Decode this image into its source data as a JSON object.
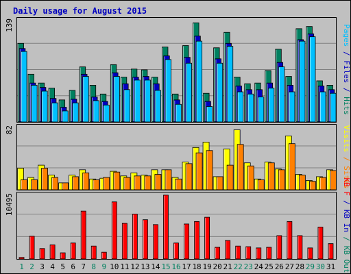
{
  "chart_data": {
    "type": "bar",
    "title": "Daily usage for August 2015",
    "categories": [
      "1",
      "2",
      "3",
      "4",
      "5",
      "6",
      "7",
      "8",
      "9",
      "10",
      "11",
      "12",
      "13",
      "14",
      "15",
      "16",
      "17",
      "18",
      "19",
      "20",
      "21",
      "22",
      "23",
      "24",
      "25",
      "26",
      "27",
      "28",
      "29",
      "30",
      "31"
    ],
    "weekend_days": [
      "1",
      "2",
      "8",
      "9",
      "15",
      "16",
      "22",
      "23",
      "29",
      "30"
    ],
    "panels": [
      {
        "id": "top",
        "ymax_label": "139",
        "ylim": [
          0,
          139
        ],
        "axis_label_parts": [
          {
            "text": "Pages",
            "color": "#00c0ff"
          },
          {
            "text": " / ",
            "color": "#0000c0"
          },
          {
            "text": "Files",
            "color": "#0000c0"
          },
          {
            "text": " / ",
            "color": "#0000c0"
          },
          {
            "text": "Hits",
            "color": "#008060"
          }
        ],
        "series": [
          {
            "name": "Hits",
            "color": "#008060",
            "values": [
              107,
              65,
              53,
              46,
              30,
              43,
              75,
              50,
              38,
              78,
              61,
              72,
              71,
              61,
              102,
              38,
              104,
              135,
              39,
              101,
              122,
              61,
              52,
              53,
              70,
              99,
              62,
              127,
              130,
              56,
              50
            ]
          },
          {
            "name": "Files",
            "color": "#0000c0",
            "values": [
              100,
              53,
              47,
              32,
              20,
              31,
              65,
              34,
              28,
              67,
              52,
              61,
              62,
              52,
              90,
              30,
              88,
              117,
              28,
              86,
              107,
              49,
              44,
              44,
              53,
              81,
              50,
              112,
              120,
              49,
              44
            ]
          },
          {
            "name": "Pages",
            "color": "#00c0ff",
            "values": [
              96,
              50,
              42,
              26,
              15,
              26,
              62,
              29,
              23,
              62,
              44,
              57,
              57,
              43,
              85,
              24,
              80,
              110,
              21,
              80,
              103,
              41,
              38,
              34,
              46,
              75,
              41,
              110,
              116,
              41,
              39
            ]
          }
        ]
      },
      {
        "id": "middle",
        "ymax_label": "82",
        "ylim": [
          0,
          82
        ],
        "axis_label_parts": [
          {
            "text": "Visits",
            "color": "#ffff00"
          },
          {
            "text": " / ",
            "color": "#ff8000"
          },
          {
            "text": "Sites",
            "color": "#ff8000"
          }
        ],
        "series": [
          {
            "name": "Visits",
            "color": "#ffff00",
            "values": [
              28,
              16,
              32,
              19,
              9,
              19,
              26,
              14,
              15,
              24,
              18,
              22,
              19,
              26,
              26,
              16,
              36,
              55,
              62,
              17,
              53,
              78,
              35,
              14,
              36,
              27,
              70,
              20,
              12,
              17,
              26
            ]
          },
          {
            "name": "Sites",
            "color": "#ff8000",
            "values": [
              13,
              13,
              28,
              16,
              9,
              17,
              22,
              13,
              16,
              23,
              16,
              18,
              18,
              20,
              26,
              14,
              34,
              48,
              51,
              17,
              32,
              59,
              31,
              13,
              35,
              26,
              60,
              19,
              11,
              16,
              25
            ]
          }
        ]
      },
      {
        "id": "bottom",
        "ymax_label": "10495",
        "ylim": [
          0,
          10495
        ],
        "axis_label_parts": [
          {
            "text": "KB F",
            "color": "#ff0000"
          },
          {
            "text": " / ",
            "color": "#0000c0"
          },
          {
            "text": "KB In",
            "color": "#0000c0"
          },
          {
            "text": " / ",
            "color": "#008060"
          },
          {
            "text": "KB Out",
            "color": "#008060"
          }
        ],
        "series": [
          {
            "name": "KB F",
            "color": "#ff0000",
            "values": [
              250,
              3700,
              1700,
              2300,
              1000,
              2600,
              7800,
              2100,
              1100,
              9300,
              5800,
              7300,
              6400,
              5600,
              10400,
              2600,
              5700,
              6100,
              6800,
              1900,
              3000,
              2100,
              2000,
              1800,
              1900,
              3800,
              6100,
              3800,
              1800,
              5200,
              2500
            ]
          }
        ]
      }
    ]
  }
}
